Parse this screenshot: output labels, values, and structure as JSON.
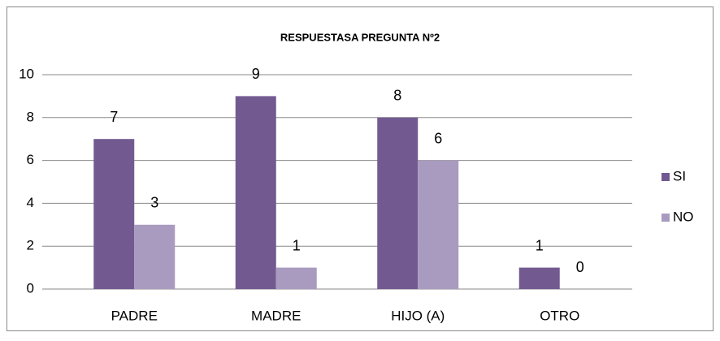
{
  "chart_data": {
    "type": "bar",
    "title": "RESPUESTASA PREGUNTA Nº2",
    "categories": [
      "PADRE",
      "MADRE",
      "HIJO (A)",
      "OTRO"
    ],
    "series": [
      {
        "name": "SI",
        "color": "#725a91",
        "values": [
          7,
          9,
          8,
          1
        ]
      },
      {
        "name": "NO",
        "color": "#a99bbf",
        "values": [
          3,
          1,
          6,
          0
        ]
      }
    ],
    "ylim": [
      0,
      10
    ],
    "yticks": [
      0,
      2,
      4,
      6,
      8,
      10
    ],
    "grid": true,
    "legend": "right"
  }
}
